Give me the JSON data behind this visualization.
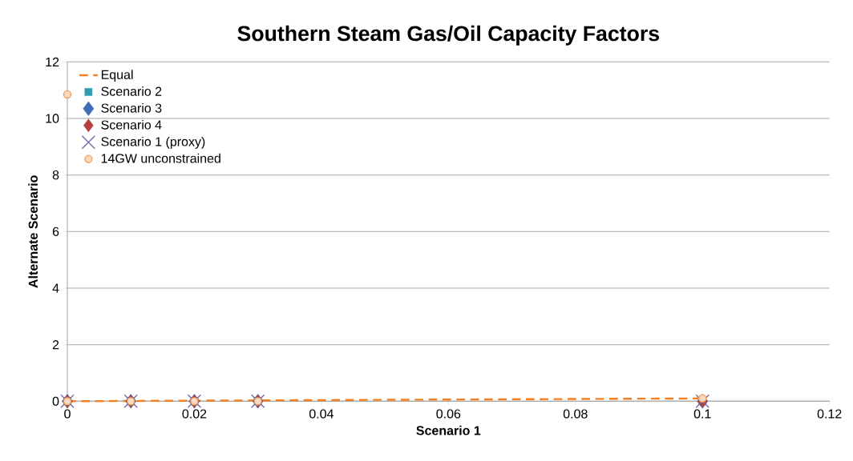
{
  "chart_data": {
    "type": "scatter",
    "title": "Southern Steam Gas/Oil Capacity Factors",
    "xlabel": "Scenario 1",
    "ylabel": "Alternate Scenario",
    "xlim": [
      0,
      0.12
    ],
    "xticks": [
      0,
      0.02,
      0.04,
      0.06,
      0.08,
      0.1,
      0.12
    ],
    "ylim": [
      0,
      12
    ],
    "yticks": [
      0,
      2,
      4,
      6,
      8,
      10,
      12
    ],
    "grid": "y",
    "legend": "top left",
    "series": [
      {
        "name": "Equal",
        "type": "line",
        "line_style": "dashed",
        "marker": "none",
        "color": "#f57f20",
        "x": [
          0,
          0.1
        ],
        "values": [
          0,
          0.1
        ]
      },
      {
        "name": "Scenario 2",
        "marker": "square",
        "color": "#2e9db0",
        "x": [
          0,
          0.01,
          0.02,
          0.03,
          0.1
        ],
        "values": [
          0,
          0,
          0,
          0,
          0
        ]
      },
      {
        "name": "Scenario 3",
        "marker": "diamond",
        "color": "#3d6eb5",
        "x": [
          0,
          0.01,
          0.02,
          0.03,
          0.1
        ],
        "values": [
          0,
          0,
          0,
          0,
          0
        ]
      },
      {
        "name": "Scenario 4",
        "marker": "diamond",
        "color": "#b5413a",
        "x": [
          0,
          0.01,
          0.02,
          0.03,
          0.1
        ],
        "values": [
          0,
          0,
          0,
          0,
          0
        ]
      },
      {
        "name": "Scenario 1 (proxy)",
        "marker": "cross",
        "color": "#7e62a8",
        "x": [
          0,
          0.01,
          0.02,
          0.03,
          0.1
        ],
        "values": [
          0,
          0,
          0,
          0,
          0
        ]
      },
      {
        "name": "14GW unconstrained",
        "marker": "circle",
        "color": "#f0a060",
        "x": [
          0,
          0,
          0.01,
          0.02,
          0.03,
          0.1
        ],
        "values": [
          10.85,
          0,
          0,
          0,
          0,
          0.1
        ]
      }
    ]
  }
}
